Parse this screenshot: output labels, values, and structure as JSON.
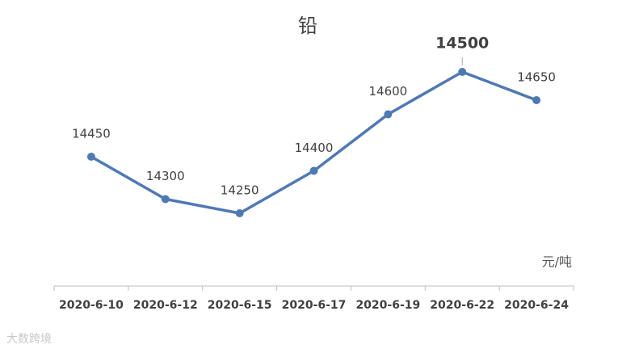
{
  "chart_data": {
    "type": "line",
    "title": "铅",
    "categories": [
      "2020-6-10",
      "2020-6-12",
      "2020-6-15",
      "2020-6-17",
      "2020-6-19",
      "2020-6-22",
      "2020-6-24"
    ],
    "series": [
      {
        "name": "铅",
        "color": "#4f79b3",
        "values": [
          14450,
          14300,
          14250,
          14400,
          14600,
          14750,
          14650
        ],
        "value_labels": [
          "14450",
          "14300",
          "14250",
          "14400",
          "14600",
          null,
          "14650"
        ]
      }
    ],
    "annotation": "14500",
    "unit": "元/吨",
    "ylim": [
      14000,
      14800
    ],
    "grid": false,
    "watermark": "大数跨境"
  }
}
